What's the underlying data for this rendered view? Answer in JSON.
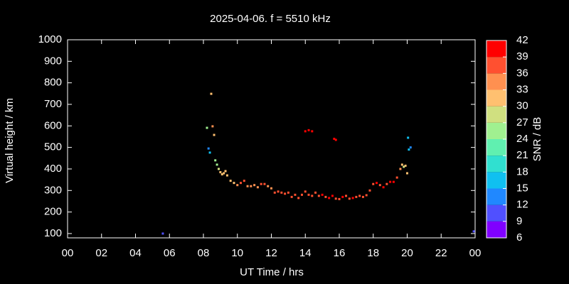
{
  "chart_data": {
    "type": "scatter",
    "title": "2025-04-06. f = 5510 kHz",
    "x_label": "UT Time / hrs",
    "y_label": "Virtual height / km",
    "xlim": [
      0,
      24
    ],
    "xticks": [
      {
        "value": 0,
        "label": "00"
      },
      {
        "value": 2,
        "label": "02"
      },
      {
        "value": 4,
        "label": "04"
      },
      {
        "value": 6,
        "label": "06"
      },
      {
        "value": 8,
        "label": "08"
      },
      10,
      12,
      14,
      16,
      18,
      20,
      22,
      {
        "value": 24,
        "label": "00"
      }
    ],
    "ylim": [
      80,
      1000
    ],
    "yticks": [
      100,
      200,
      300,
      400,
      500,
      600,
      700,
      800,
      900,
      1000
    ],
    "colorbar": {
      "label": "SNR / dB",
      "lim": [
        6,
        42
      ],
      "ticks": [
        6,
        9,
        12,
        15,
        18,
        21,
        24,
        27,
        30,
        33,
        36,
        39,
        42
      ],
      "colors": [
        "#8000ff",
        "#5050ff",
        "#2088ff",
        "#10c0f0",
        "#30e0d0",
        "#60f0b0",
        "#a0f090",
        "#d0e080",
        "#ffc070",
        "#ff9050",
        "#ff5030",
        "#ff0000"
      ]
    },
    "x": [
      5.61,
      23.92,
      8.21,
      8.46,
      8.54,
      8.63,
      8.3,
      8.38,
      8.7,
      8.8,
      8.9,
      9.0,
      9.1,
      9.2,
      9.3,
      9.4,
      9.6,
      9.8,
      10.0,
      10.2,
      10.4,
      10.6,
      10.8,
      11.0,
      11.2,
      11.4,
      11.6,
      11.8,
      12.0,
      12.2,
      12.4,
      12.6,
      12.8,
      13.0,
      13.2,
      13.4,
      13.6,
      13.8,
      14.0,
      14.2,
      14.4,
      14.6,
      14.8,
      15.0,
      15.2,
      15.4,
      15.6,
      15.8,
      16.0,
      16.2,
      16.4,
      16.6,
      16.8,
      17.0,
      17.2,
      17.4,
      17.6,
      17.8,
      18.0,
      18.2,
      18.4,
      18.6,
      18.8,
      19.0,
      19.2,
      19.4,
      19.6,
      19.7,
      19.8,
      19.9,
      20.0,
      20.05,
      20.1,
      20.2,
      14.0,
      14.2,
      14.4,
      15.7,
      15.8
    ],
    "values": [
      100,
      110,
      591,
      749,
      598,
      558,
      495,
      476,
      440,
      420,
      400,
      385,
      375,
      380,
      390,
      370,
      345,
      335,
      325,
      335,
      345,
      320,
      320,
      325,
      315,
      330,
      330,
      320,
      310,
      290,
      295,
      290,
      285,
      290,
      270,
      280,
      265,
      280,
      295,
      280,
      275,
      290,
      275,
      280,
      270,
      265,
      275,
      262,
      260,
      270,
      275,
      262,
      265,
      270,
      275,
      270,
      278,
      300,
      330,
      335,
      325,
      315,
      330,
      340,
      340,
      360,
      400,
      420,
      410,
      415,
      380,
      545,
      490,
      500,
      575,
      580,
      575,
      540,
      535
    ],
    "snr": [
      10,
      10,
      25,
      31,
      33,
      30,
      14,
      17,
      24,
      25,
      28,
      30,
      30,
      30,
      31,
      31,
      31,
      32,
      33,
      36,
      36,
      34,
      33,
      33,
      34,
      36,
      36,
      34,
      35,
      38,
      38,
      37,
      38,
      37,
      38,
      38,
      38,
      37,
      38,
      37,
      38,
      37,
      38,
      39,
      38,
      39,
      40,
      38,
      38,
      39,
      38,
      38,
      39,
      38,
      38,
      38,
      38,
      36,
      38,
      39,
      38,
      39,
      38,
      39,
      39,
      38,
      35,
      30,
      28,
      30,
      32,
      17,
      15,
      14,
      39,
      39,
      39,
      39,
      39
    ]
  }
}
